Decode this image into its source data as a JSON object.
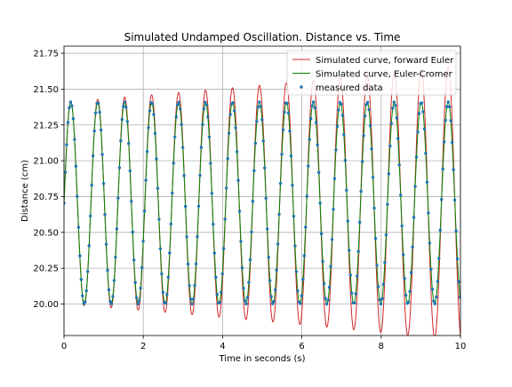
{
  "chart_data": {
    "type": "line",
    "title": "Simulated Undamped Oscillation. Distance vs. Time",
    "xlabel": "Time in seconds (s)",
    "ylabel": "Distance (cm)",
    "xlim": [
      0,
      10
    ],
    "ylim": [
      19.78,
      21.8
    ],
    "xticks": [
      0,
      2,
      4,
      6,
      8,
      10
    ],
    "xtick_labels": [
      "0",
      "2",
      "4",
      "6",
      "8",
      "10"
    ],
    "yticks": [
      20.0,
      20.25,
      20.5,
      20.75,
      21.0,
      21.25,
      21.5,
      21.75
    ],
    "ytick_labels": [
      "20.00",
      "20.25",
      "20.50",
      "20.75",
      "21.00",
      "21.25",
      "21.50",
      "21.75"
    ],
    "grid": true,
    "legend_position": "top-right",
    "equilibrium": 20.705,
    "amplitude": 0.705,
    "period": 0.68,
    "phase_start": 0.0,
    "euler_growth_per_second": 0.031,
    "measured_sample_interval": 0.0333,
    "series": [
      {
        "name": "Simulated curve, forward Euler",
        "kind": "line",
        "color": "#d62728"
      },
      {
        "name": "Simulated curve, Euler-Cromer",
        "kind": "line",
        "color": "#008000"
      },
      {
        "name": "measured data",
        "kind": "scatter",
        "color": "#1f77b4"
      }
    ]
  }
}
